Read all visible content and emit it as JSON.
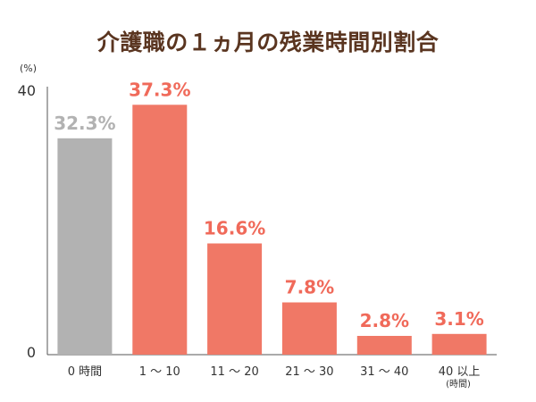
{
  "chart_data": {
    "type": "bar",
    "title": "介護職の１ヵ月の残業時間別割合",
    "unit": "(%)",
    "ylim": [
      0,
      40
    ],
    "yticks": [
      "40",
      "0"
    ],
    "categories": [
      "0 時間",
      "1 ～ 10",
      "11 ～ 20",
      "21 ～ 30",
      "31 ～ 40",
      "40 以上"
    ],
    "category_note": "(時間)",
    "values": [
      32.3,
      37.3,
      16.6,
      7.8,
      2.8,
      3.1
    ],
    "data_labels": [
      "32.3%",
      "37.3%",
      "16.6%",
      "7.8%",
      "2.8%",
      "3.1%"
    ],
    "colors": [
      "#b2b2b2",
      "#f07866",
      "#f07866",
      "#f07866",
      "#f07866",
      "#f07866"
    ],
    "label_colors": [
      "#b2b2b2",
      "#f06a5a",
      "#f06a5a",
      "#f06a5a",
      "#f06a5a",
      "#f06a5a"
    ],
    "axis_color": "#555555",
    "grid": false
  }
}
